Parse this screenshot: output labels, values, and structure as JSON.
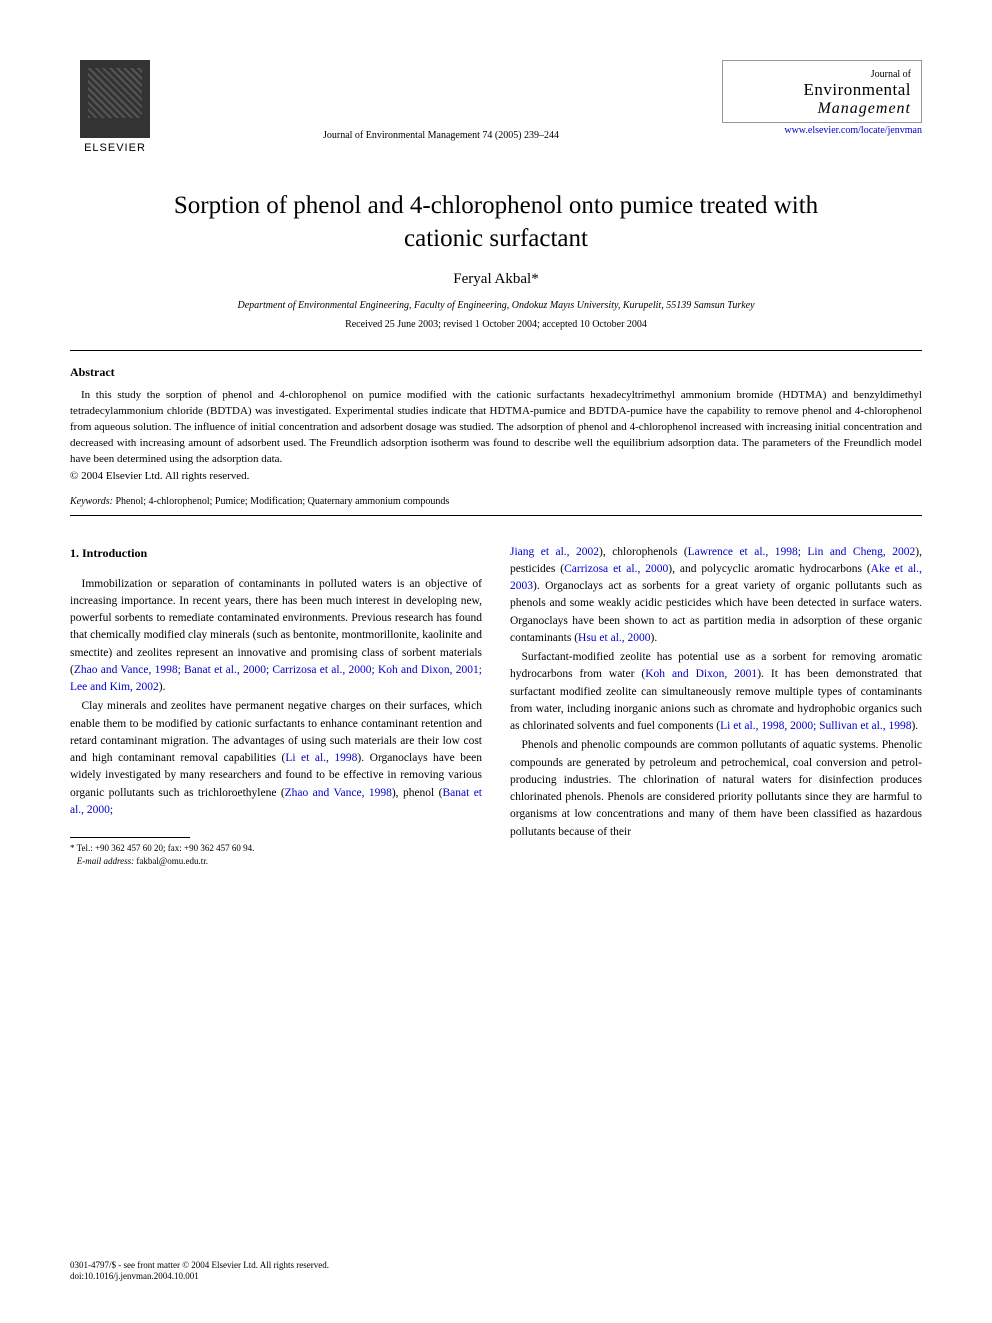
{
  "publisher": "ELSEVIER",
  "citation": "Journal of Environmental Management 74 (2005) 239–244",
  "journal": {
    "prefix": "Journal of",
    "line1": "Environmental",
    "line2": "Management",
    "url": "www.elsevier.com/locate/jenvman"
  },
  "title": "Sorption of phenol and 4-chlorophenol onto pumice treated with cationic surfactant",
  "author": "Feryal Akbal*",
  "affiliation": "Department of Environmental Engineering, Faculty of Engineering, Ondokuz Mayıs University, Kurupelit, 55139 Samsun Turkey",
  "dates": "Received 25 June 2003; revised 1 October 2004; accepted 10 October 2004",
  "abstract": {
    "heading": "Abstract",
    "body": "In this study the sorption of phenol and 4-chlorophenol on pumice modified with the cationic surfactants hexadecyltrimethyl ammonium bromide (HDTMA) and benzyldimethyl tetradecylammonium chloride (BDTDA) was investigated. Experimental studies indicate that HDTMA-pumice and BDTDA-pumice have the capability to remove phenol and 4-chlorophenol from aqueous solution. The influence of initial concentration and adsorbent dosage was studied. The adsorption of phenol and 4-chlorophenol increased with increasing initial concentration and decreased with increasing amount of adsorbent used. The Freundlich adsorption isotherm was found to describe well the equilibrium adsorption data. The parameters of the Freundlich model have been determined using the adsorption data.",
    "copyright": "© 2004 Elsevier Ltd. All rights reserved."
  },
  "keywords": {
    "label": "Keywords:",
    "text": " Phenol; 4-chlorophenol; Pumice; Modification; Quaternary ammonium compounds"
  },
  "section_heading": "1. Introduction",
  "left_col": {
    "p1a": "Immobilization or separation of contaminants in polluted waters is an objective of increasing importance. In recent years, there has been much interest in developing new, powerful sorbents to remediate contaminated environments. Previous research has found that chemically modified clay minerals (such as bentonite, montmorillonite, kaolinite and smectite) and zeolites represent an innovative and promising class of sorbent materials (",
    "p1_cite": "Zhao and Vance, 1998; Banat et al., 2000; Carrizosa et al., 2000; Koh and Dixon, 2001; Lee and Kim, 2002",
    "p1b": ").",
    "p2a": "Clay minerals and zeolites have permanent negative charges on their surfaces, which enable them to be modified by cationic surfactants to enhance contaminant retention and retard contaminant migration. The advantages of using such materials are their low cost and high contaminant removal capabilities (",
    "p2_cite1": "Li et al., 1998",
    "p2b": "). Organoclays have been widely investigated by many researchers and found to be effective in removing various organic pollutants such as trichloroethylene (",
    "p2_cite2": "Zhao and Vance, 1998",
    "p2c": "), phenol (",
    "p2_cite3": "Banat et al., 2000;"
  },
  "right_col": {
    "p1_cite1": "Jiang et al., 2002",
    "p1a": "), chlorophenols (",
    "p1_cite2": "Lawrence et al., 1998; Lin and Cheng, 2002",
    "p1b": "), pesticides (",
    "p1_cite3": "Carrizosa et al., 2000",
    "p1c": "), and polycyclic aromatic hydrocarbons (",
    "p1_cite4": "Ake et al., 2003",
    "p1d": "). Organoclays act as sorbents for a great variety of organic pollutants such as phenols and some weakly acidic pesticides which have been detected in surface waters. Organoclays have been shown to act as partition media in adsorption of these organic contaminants (",
    "p1_cite5": "Hsu et al., 2000",
    "p1e": ").",
    "p2a": "Surfactant-modified zeolite has potential use as a sorbent for removing aromatic hydrocarbons from water (",
    "p2_cite1": "Koh and Dixon, 2001",
    "p2b": "). It has been demonstrated that surfactant modified zeolite can simultaneously remove multiple types of contaminants from water, including inorganic anions such as chromate and hydrophobic organics such as chlorinated solvents and fuel components (",
    "p2_cite2": "Li et al., 1998, 2000; Sullivan et al., 1998",
    "p2c": ").",
    "p3": "Phenols and phenolic compounds are common pollutants of aquatic systems. Phenolic compounds are generated by petroleum and petrochemical, coal conversion and petrol-producing industries. The chlorination of natural waters for disinfection produces chlorinated phenols. Phenols are considered priority pollutants since they are harmful to organisms at low concentrations and many of them have been classified as hazardous pollutants because of their"
  },
  "footnote": {
    "tel": "* Tel.: +90 362 457 60 20; fax: +90 362 457 60 94.",
    "email_label": "E-mail address:",
    "email": " fakbal@omu.edu.tr."
  },
  "footer": {
    "line1": "0301-4797/$ - see front matter © 2004 Elsevier Ltd. All rights reserved.",
    "line2": "doi:10.1016/j.jenvman.2004.10.001"
  }
}
